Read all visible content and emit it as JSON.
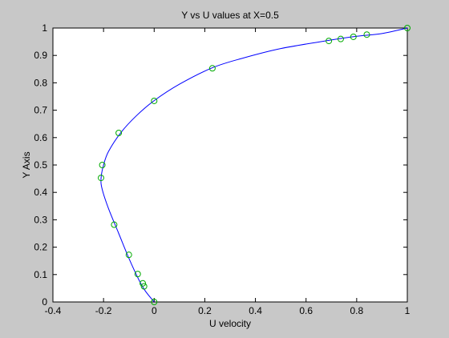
{
  "chart_data": {
    "type": "line",
    "title": "Y vs U values at X=0.5",
    "xlabel": "U velocity",
    "ylabel": "Y Axis",
    "xlim": [
      -0.4,
      1
    ],
    "ylim": [
      0,
      1
    ],
    "xticks": [
      -0.4,
      -0.2,
      0,
      0.2,
      0.4,
      0.6,
      0.8,
      1
    ],
    "yticks": [
      0,
      0.1,
      0.2,
      0.3,
      0.4,
      0.5,
      0.6,
      0.7,
      0.8,
      0.9,
      1
    ],
    "xtick_labels": [
      "-0.4",
      "-0.2",
      "0",
      "0.2",
      "0.4",
      "0.6",
      "0.8",
      "1"
    ],
    "ytick_labels": [
      "0",
      "0.1",
      "0.2",
      "0.3",
      "0.4",
      "0.5",
      "0.6",
      "0.7",
      "0.8",
      "0.9",
      "1"
    ],
    "grid": false,
    "series": [
      {
        "style": "curve",
        "color": "#0000ff",
        "points": [
          [
            0,
            0
          ],
          [
            -0.035,
            0.04
          ],
          [
            -0.06,
            0.08
          ],
          [
            -0.1,
            0.16
          ],
          [
            -0.14,
            0.25
          ],
          [
            -0.18,
            0.34
          ],
          [
            -0.205,
            0.41
          ],
          [
            -0.21,
            0.45
          ],
          [
            -0.2,
            0.5
          ],
          [
            -0.18,
            0.55
          ],
          [
            -0.13,
            0.62
          ],
          [
            -0.07,
            0.68
          ],
          [
            0,
            0.735
          ],
          [
            0.1,
            0.795
          ],
          [
            0.23,
            0.855
          ],
          [
            0.35,
            0.89
          ],
          [
            0.5,
            0.925
          ],
          [
            0.69,
            0.955
          ],
          [
            0.8,
            0.97
          ],
          [
            0.9,
            0.98
          ],
          [
            1,
            1
          ]
        ]
      },
      {
        "style": "markers",
        "color": "#00aa00",
        "points": [
          [
            0,
            0
          ],
          [
            -0.04,
            0.057
          ],
          [
            -0.045,
            0.068
          ],
          [
            -0.065,
            0.102
          ],
          [
            -0.1,
            0.172
          ],
          [
            -0.158,
            0.282
          ],
          [
            -0.21,
            0.453
          ],
          [
            -0.205,
            0.5
          ],
          [
            -0.14,
            0.617
          ],
          [
            0,
            0.734
          ],
          [
            0.23,
            0.853
          ],
          [
            0.69,
            0.953
          ],
          [
            0.737,
            0.96
          ],
          [
            0.787,
            0.968
          ],
          [
            0.84,
            0.976
          ],
          [
            1,
            1
          ]
        ]
      }
    ]
  }
}
